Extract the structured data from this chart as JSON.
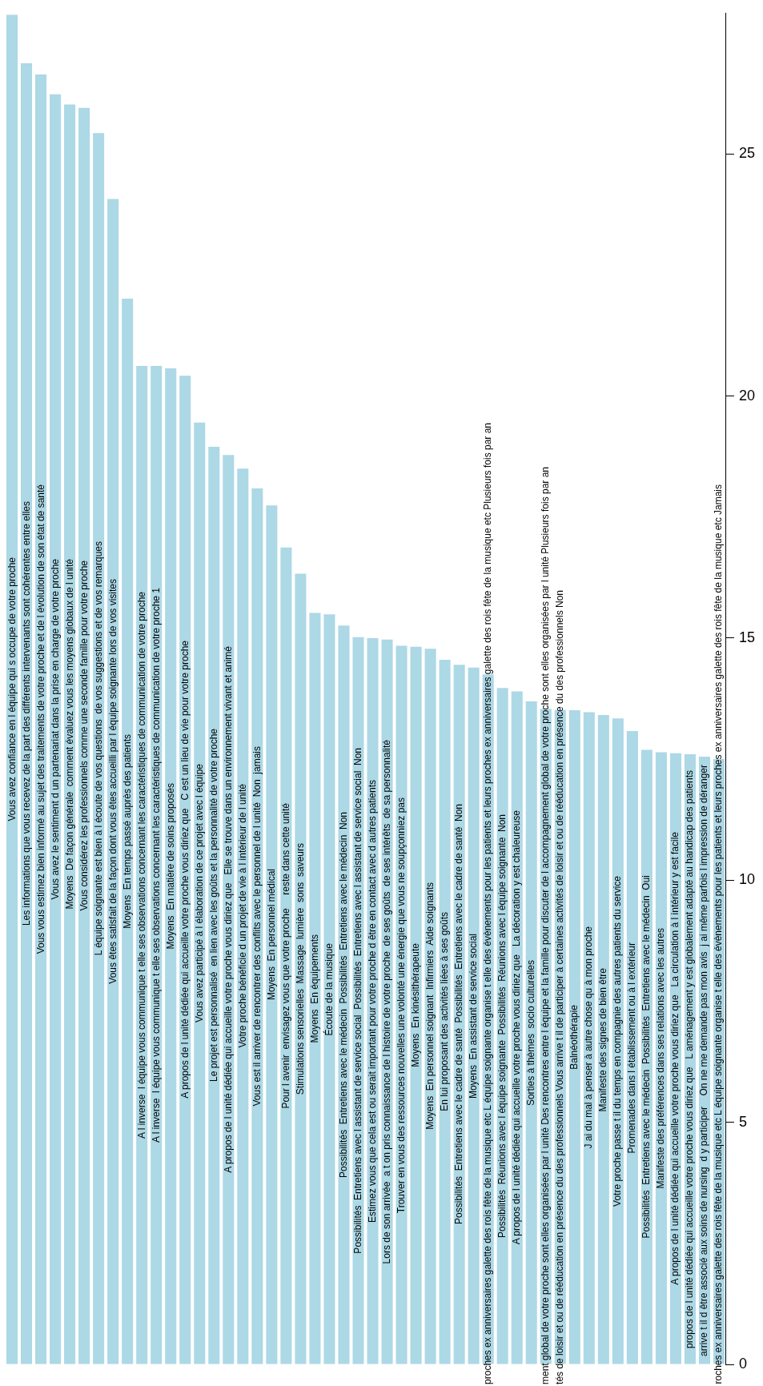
{
  "chart_data": {
    "type": "bar",
    "color": "#add8e6",
    "ylim": [
      0,
      27.9
    ],
    "yticks": [
      0,
      5,
      10,
      15,
      20,
      25
    ],
    "grid": false,
    "legend": false,
    "categories": [
      "Vous avez confiance en l équipe qui s occupe de votre proche",
      "Les informations que vous recevez de la part des différents intervenants sont cohérentes entre elles",
      "Vous vous estimez bien informé au sujet des traitements de votre proche et de l évolution de son état de santé",
      "Vous avez le sentiment d un partenariat dans la prise en charge de votre proche",
      "Moyens  De façon générale  comment évaluez vous les moyens globaux de l unité",
      "Vous considérez les professionnels comme une seconde famille pour votre proche",
      "L équipe soignante est bien à l écoute de vos questions  de vos suggestions et de vos remarques",
      "Vous êtes satisfait de la façon dont vous êtes accueilli par l équipe soignante lors de vos visites",
      "Moyens  En temps passé auprès des patients",
      "A l inverse  l équipe vous communique t elle ses observations concernant les caractéristiques de communication de votre proche",
      "A l inverse  l équipe vous communique t elle ses observations concernant les caractéristiques de communication de votre proche 1",
      "Moyens  En matière de soins proposés",
      "A propos de l unité dédiée qui accueille votre proche vous diriez que   C est un lieu de vie pour votre proche",
      "Vous avez participé à l élaboration de ce projet avec l équipe",
      "Le projet est personnalisé  en lien avec les goûts et la personnalité de votre proche",
      "A propos de l unité dédiée qui accueille votre proche vous diriez que   Elle se trouve dans un environnement vivant et animé",
      "Votre proche bénéficie d un projet de vie à l intérieur de l unité",
      "Vous est il arriver de rencontrer des conflits avec le personnel de l unité  Non  jamais",
      "Moyens  En personnel médical",
      "Pour l avenir  envisagez vous que votre proche     reste dans cette unité",
      "Stimulations sensorielles  Massage  lumière  sons  saveurs",
      "Moyens  En équipements",
      "Écoute de la musique",
      "Possibilités  Entretiens avec le médecin  Possibilités  Entretiens avec le médecin  Non",
      "Possibilités  Entretiens avec l assistant de service social  Possibilités  Entretiens avec l assistant de service social  Non",
      "Estimez vous que cela est ou serait important pour votre proche d être en contact avec d autres patients",
      "Lors de son arrivée  a t on pris connaissance de l histoire de votre proche  de ses goûts  de ses intérêts  de sa personnalité",
      "Trouver en vous des ressources nouvelles une volonté une énergie que vous ne soupçonniez pas",
      "Moyens  En kinésithérapeute",
      "Moyens  En personnel soignant  Infirmiers  Aide soignants",
      "En lui proposant des activités liées à ses goûts",
      "Possibilités  Entretiens avec le cadre de santé  Possibilités  Entretiens avec le cadre de santé  Non",
      "Moyens  En assistant de service social",
      "proches ex anniversaires galette des rois fête de la musique etc L équipe soignante organise t elle des évènements pour les patients et leurs proches ex anniversaires galette des rois fête de la musique etc Plusieurs fois par an",
      "Possibilités  Réunions avec l équipe soignante  Possibilités  Réunions avec l équipe soignante  Non",
      "A propos de l unité dédiée qui accueille votre proche vous diriez que   La décoration y est chaleureuse",
      "Sorties à thèmes  socio culturelles",
      "ment global de votre proche sont elles organisées par l unité Des rencontres entre l équipe et la famille pour discuter de l accompagnement global de votre proche sont elles organisées par l unité Plusieurs fois par an",
      "tés de loisir et ou de rééducation en présence du des professionnels Vous arrive t il de participer à certaines activités de loisir et ou de rééducation en présence du des professionnels Non",
      "Balnéothérapie",
      "J ai du mal à penser à autre chose qu à mon proche",
      "Manifeste des signes de bien être",
      "Votre proche passe t il du temps en compagnie des autres patients du service",
      "Promenades dans l établissement ou à l extérieur",
      "Possibilités  Entretiens avec le médecin  Possibilités  Entretiens avec le médecin  Oui",
      "Manifeste des préférences dans ses relations avec les autres",
      "A propos de l unité dédiée qui accueille votre proche vous diriez que   La circulation à l intérieur y est facile",
      "propos de l unité dédiée qui accueille votre proche vous diriez que   L aménagement y est globalement adapté au handicap des patients",
      "arrive t il d être associé aux soins de nursing  d y participer    On ne me demande pas mon avis  j ai même parfois l impression de déranger",
      "roches ex anniversaires galette des rois fête de la musique etc L équipe soignante organise t elle des évènements pour les patients et leurs proches ex anniversaires galette des rois fête de la musique etc Jamais"
    ],
    "values": [
      27.87,
      26.87,
      26.64,
      26.23,
      26.02,
      25.95,
      25.43,
      24.07,
      22.01,
      20.62,
      20.62,
      20.57,
      20.42,
      19.45,
      18.95,
      18.78,
      18.5,
      18.09,
      17.74,
      16.87,
      16.33,
      15.52,
      15.49,
      15.26,
      15.02,
      15.0,
      14.97,
      14.84,
      14.82,
      14.78,
      14.55,
      14.45,
      14.39,
      14.25,
      13.97,
      13.9,
      13.69,
      13.54,
      13.52,
      13.51,
      13.47,
      13.41,
      13.34,
      13.08,
      12.69,
      12.64,
      12.62,
      12.6,
      12.55,
      12.5
    ]
  }
}
